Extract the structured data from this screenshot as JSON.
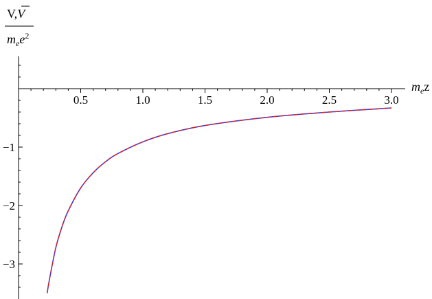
{
  "chart_data": {
    "type": "line",
    "title": "",
    "xlabel": {
      "base": "m",
      "sub": "e",
      "tail": "z"
    },
    "ylabel": {
      "numerator": {
        "v": "V,",
        "vbar": "V"
      },
      "denominator": {
        "m": "m",
        "sub": "e",
        "e": "e",
        "sup": "2"
      }
    },
    "xlim": [
      0,
      3.05
    ],
    "ylim": [
      -3.5,
      0.5
    ],
    "x_ticks": [
      {
        "value": 0.5,
        "label": "0.5"
      },
      {
        "value": 1.0,
        "label": "1.0"
      },
      {
        "value": 1.5,
        "label": "1.5"
      },
      {
        "value": 2.0,
        "label": "2.0"
      },
      {
        "value": 2.5,
        "label": "2.5"
      },
      {
        "value": 3.0,
        "label": "3.0"
      }
    ],
    "y_ticks": [
      {
        "value": -1,
        "label": "−1"
      },
      {
        "value": -2,
        "label": "−2"
      },
      {
        "value": -3,
        "label": "−3"
      }
    ],
    "grid": false,
    "series": [
      {
        "color": "#3b3bd6",
        "dash": "solid",
        "x": [
          0.23,
          0.25,
          0.3,
          0.35,
          0.4,
          0.5,
          0.6,
          0.7,
          0.8,
          1.0,
          1.2,
          1.5,
          2.0,
          2.5,
          3.0
        ],
        "y": [
          -3.5,
          -3.25,
          -2.72,
          -2.36,
          -2.09,
          -1.7,
          -1.44,
          -1.25,
          -1.11,
          -0.91,
          -0.77,
          -0.63,
          -0.49,
          -0.4,
          -0.33
        ]
      },
      {
        "color": "#e02020",
        "dash": "dashed",
        "x": [
          0.23,
          0.25,
          0.3,
          0.35,
          0.4,
          0.5,
          0.6,
          0.7,
          0.8,
          1.0,
          1.2,
          1.5,
          2.0,
          2.5,
          3.0
        ],
        "y": [
          -3.5,
          -3.25,
          -2.72,
          -2.36,
          -2.09,
          -1.7,
          -1.44,
          -1.25,
          -1.11,
          -0.91,
          -0.77,
          -0.63,
          -0.49,
          -0.4,
          -0.33
        ]
      }
    ]
  }
}
